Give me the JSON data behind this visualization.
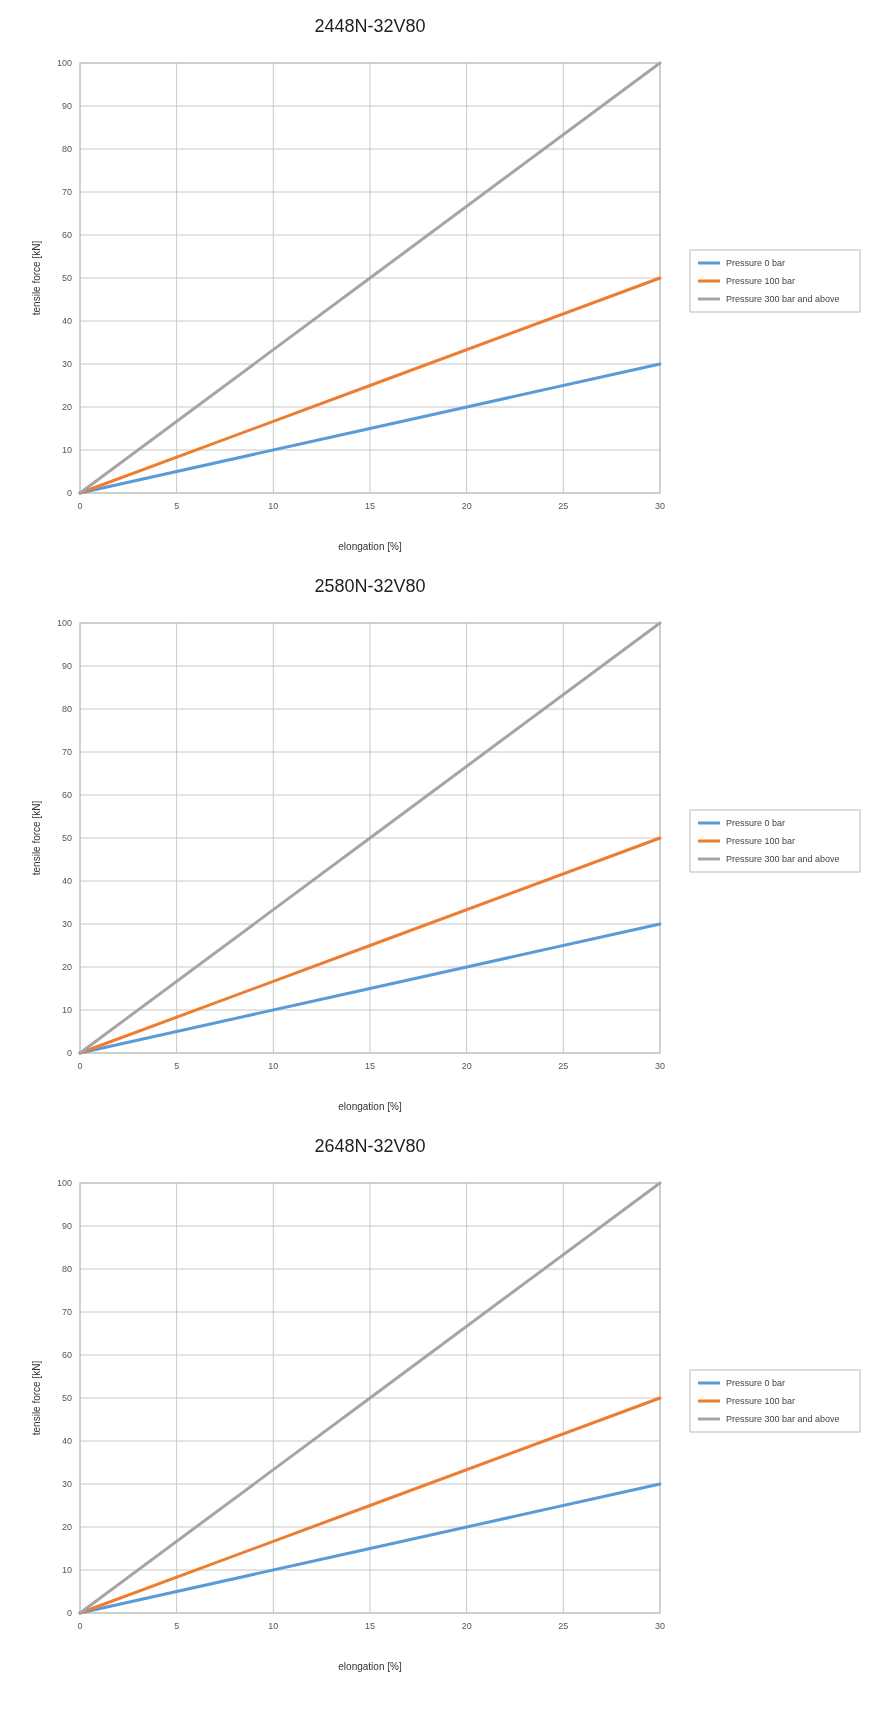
{
  "chart_data": [
    {
      "type": "line",
      "title": "2448N-32V80",
      "xlabel": "elongation [%]",
      "ylabel": "tensile force [kN]",
      "x": [
        0,
        15,
        30
      ],
      "xlim": [
        0,
        30
      ],
      "xticks": [
        0,
        5,
        10,
        15,
        20,
        25,
        30
      ],
      "ylim": [
        0,
        100
      ],
      "yticks": [
        0,
        10,
        20,
        30,
        40,
        50,
        60,
        70,
        80,
        90,
        100
      ],
      "grid": true,
      "legend": "right",
      "marker": "none",
      "series": [
        {
          "name": "Pressure 0 bar",
          "color": "#5b9bd5",
          "values": [
            0,
            15,
            30
          ]
        },
        {
          "name": "Pressure 100 bar",
          "color": "#ed7d31",
          "values": [
            0,
            25,
            50
          ]
        },
        {
          "name": "Pressure 300 bar and above",
          "color": "#a5a5a5",
          "values": [
            0,
            50,
            100
          ]
        }
      ]
    },
    {
      "type": "line",
      "title": "2580N-32V80",
      "xlabel": "elongation [%]",
      "ylabel": "tensile force [kN]",
      "x": [
        0,
        15,
        30
      ],
      "xlim": [
        0,
        30
      ],
      "xticks": [
        0,
        5,
        10,
        15,
        20,
        25,
        30
      ],
      "ylim": [
        0,
        100
      ],
      "yticks": [
        0,
        10,
        20,
        30,
        40,
        50,
        60,
        70,
        80,
        90,
        100
      ],
      "grid": true,
      "legend": "right",
      "marker": "none",
      "series": [
        {
          "name": "Pressure 0 bar",
          "color": "#5b9bd5",
          "values": [
            0,
            15,
            30
          ]
        },
        {
          "name": "Pressure 100 bar",
          "color": "#ed7d31",
          "values": [
            0,
            25,
            50
          ]
        },
        {
          "name": "Pressure 300 bar and above",
          "color": "#a5a5a5",
          "values": [
            0,
            50,
            100
          ]
        }
      ]
    },
    {
      "type": "line",
      "title": "2648N-32V80",
      "xlabel": "elongation [%]",
      "ylabel": "tensile force [kN]",
      "x": [
        0,
        15,
        30
      ],
      "xlim": [
        0,
        30
      ],
      "xticks": [
        0,
        5,
        10,
        15,
        20,
        25,
        30
      ],
      "ylim": [
        0,
        100
      ],
      "yticks": [
        0,
        10,
        20,
        30,
        40,
        50,
        60,
        70,
        80,
        90,
        100
      ],
      "grid": true,
      "legend": "right",
      "marker": "none",
      "series": [
        {
          "name": "Pressure 0 bar",
          "color": "#5b9bd5",
          "values": [
            0,
            15,
            30
          ]
        },
        {
          "name": "Pressure 100 bar",
          "color": "#ed7d31",
          "values": [
            0,
            25,
            50
          ]
        },
        {
          "name": "Pressure 300 bar and above",
          "color": "#a5a5a5",
          "values": [
            0,
            50,
            100
          ]
        }
      ]
    }
  ]
}
